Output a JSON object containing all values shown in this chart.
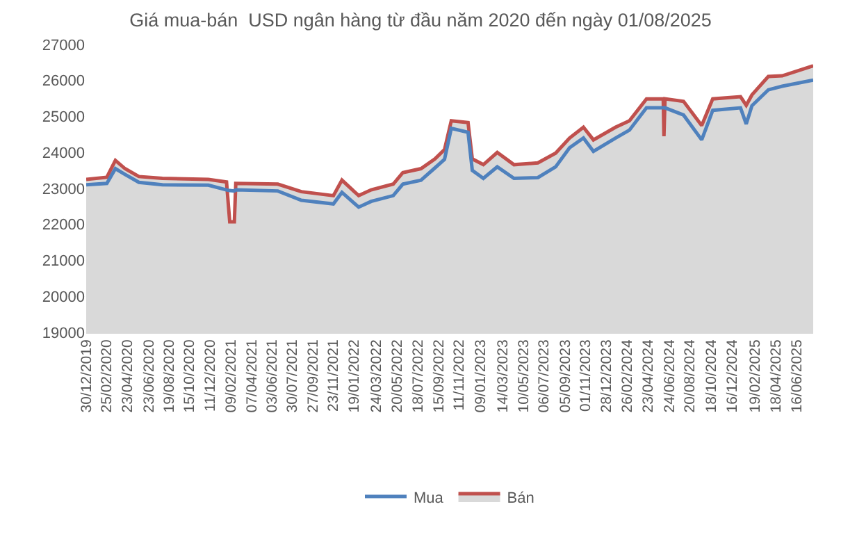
{
  "chart_data": {
    "type": "line",
    "title": "Giá mua-bán  USD ngân hàng từ đầu năm 2020 đến ngày 01/08/2025",
    "x": [
      "2019-12-30",
      "2020-02-26",
      "2020-03-21",
      "2020-04-17",
      "2020-05-26",
      "2020-07-31",
      "2020-12-07",
      "2021-01-27",
      "2021-02-05",
      "2021-02-18",
      "2021-02-22",
      "2021-06-20",
      "2021-08-25",
      "2021-11-23",
      "2021-12-17",
      "2022-02-02",
      "2022-03-09",
      "2022-05-10",
      "2022-06-06",
      "2022-07-27",
      "2022-09-04",
      "2022-10-01",
      "2022-10-20",
      "2022-12-06",
      "2022-12-18",
      "2023-01-18",
      "2023-02-26",
      "2023-04-14",
      "2023-06-20",
      "2023-08-09",
      "2023-09-17",
      "2023-10-26",
      "2023-11-23",
      "2024-01-24",
      "2024-03-03",
      "2024-04-20",
      "2024-06-06",
      "2024-06-08",
      "2024-06-11",
      "2024-08-02",
      "2024-09-22",
      "2024-10-23",
      "2025-01-09",
      "2025-01-25",
      "2025-02-10",
      "2025-03-28",
      "2025-05-06",
      "2025-08-01"
    ],
    "series": [
      {
        "name": "Mua",
        "color": "#4f81bd",
        "values": [
          23100,
          23140,
          23550,
          23390,
          23170,
          23100,
          23090,
          22960,
          22940,
          22930,
          22960,
          22930,
          22670,
          22570,
          22890,
          22480,
          22640,
          22800,
          23120,
          23230,
          23570,
          23810,
          24670,
          24560,
          23500,
          23280,
          23600,
          23280,
          23300,
          23600,
          24130,
          24400,
          24030,
          24400,
          24620,
          25240,
          25240,
          25240,
          25240,
          25040,
          24350,
          25170,
          25240,
          24790,
          25300,
          25740,
          25840,
          26010
        ]
      },
      {
        "name": "Bán",
        "type": "area",
        "color": "#c0504d",
        "values": [
          23250,
          23310,
          23780,
          23550,
          23330,
          23280,
          23250,
          23180,
          22070,
          22070,
          23140,
          23120,
          22910,
          22800,
          23230,
          22800,
          22960,
          23120,
          23440,
          23550,
          23820,
          24080,
          24880,
          24830,
          23820,
          23660,
          24000,
          23660,
          23710,
          23980,
          24400,
          24700,
          24350,
          24700,
          24880,
          25490,
          25490,
          24450,
          25490,
          25420,
          24750,
          25490,
          25550,
          25310,
          25600,
          26110,
          26130,
          26410
        ]
      }
    ],
    "xlim": [
      "2019-12-30",
      "2025-08-01"
    ],
    "xticks": [
      {
        "value": "2019-12-30",
        "label": "30/12/2019"
      },
      {
        "value": "2020-02-25",
        "label": "25/02/2020"
      },
      {
        "value": "2020-04-23",
        "label": "23/04/2020"
      },
      {
        "value": "2020-06-23",
        "label": "23/06/2020"
      },
      {
        "value": "2020-08-19",
        "label": "19/08/2020"
      },
      {
        "value": "2020-10-15",
        "label": "15/10/2020"
      },
      {
        "value": "2020-12-11",
        "label": "11/12/2020"
      },
      {
        "value": "2021-02-09",
        "label": "09/02/2021"
      },
      {
        "value": "2021-04-07",
        "label": "07/04/2021"
      },
      {
        "value": "2021-06-03",
        "label": "03/06/2021"
      },
      {
        "value": "2021-07-30",
        "label": "30/07/2021"
      },
      {
        "value": "2021-09-27",
        "label": "27/09/2021"
      },
      {
        "value": "2021-11-23",
        "label": "23/11/2021"
      },
      {
        "value": "2022-01-19",
        "label": "19/01/2022"
      },
      {
        "value": "2022-03-24",
        "label": "24/03/2022"
      },
      {
        "value": "2022-05-20",
        "label": "20/05/2022"
      },
      {
        "value": "2022-07-18",
        "label": "18/07/2022"
      },
      {
        "value": "2022-09-15",
        "label": "15/09/2022"
      },
      {
        "value": "2022-11-11",
        "label": "11/11/2022"
      },
      {
        "value": "2023-01-09",
        "label": "09/01/2023"
      },
      {
        "value": "2023-03-14",
        "label": "14/03/2023"
      },
      {
        "value": "2023-05-10",
        "label": "10/05/2023"
      },
      {
        "value": "2023-07-06",
        "label": "06/07/2023"
      },
      {
        "value": "2023-09-05",
        "label": "05/09/2023"
      },
      {
        "value": "2023-11-01",
        "label": "01/11/2023"
      },
      {
        "value": "2023-12-28",
        "label": "28/12/2023"
      },
      {
        "value": "2024-02-26",
        "label": "26/02/2024"
      },
      {
        "value": "2024-04-23",
        "label": "23/04/2024"
      },
      {
        "value": "2024-06-24",
        "label": "24/06/2024"
      },
      {
        "value": "2024-08-20",
        "label": "20/08/2024"
      },
      {
        "value": "2024-10-18",
        "label": "18/10/2024"
      },
      {
        "value": "2024-12-16",
        "label": "16/12/2024"
      },
      {
        "value": "2025-02-19",
        "label": "19/02/2025"
      },
      {
        "value": "2025-04-18",
        "label": "18/04/2025"
      },
      {
        "value": "2025-06-16",
        "label": "16/06/2025"
      }
    ],
    "ylim": [
      19000,
      27000
    ],
    "yticks": [
      19000,
      20000,
      21000,
      22000,
      23000,
      24000,
      25000,
      26000,
      27000
    ],
    "grid": false,
    "legend": "bottom"
  }
}
